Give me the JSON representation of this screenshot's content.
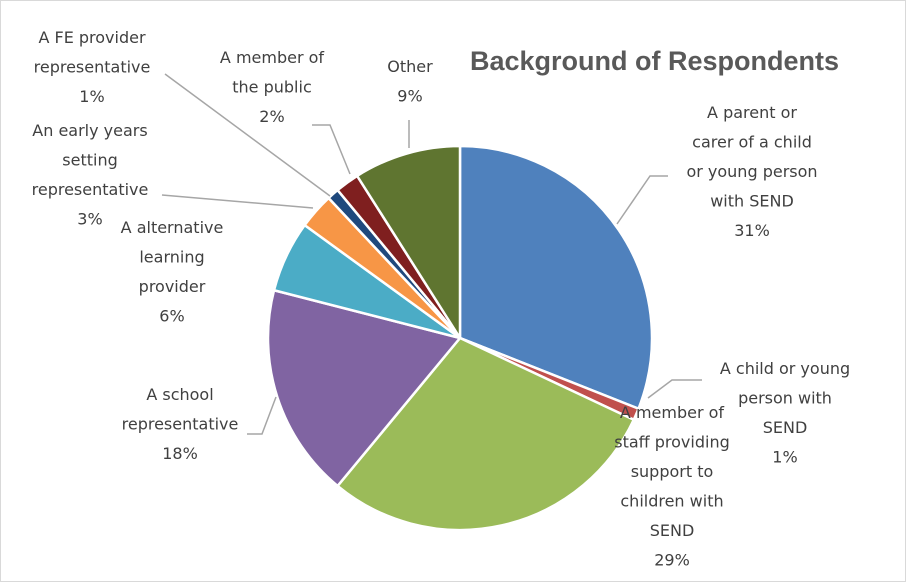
{
  "chart_data": {
    "type": "pie",
    "title": "Background of Respondents",
    "slices": [
      {
        "name": "A parent or carer of a child or young person with SEND",
        "value": 31,
        "pct": "31%",
        "color": "#4f81bd",
        "label_lines": [
          "A parent or",
          "carer of a child",
          "or young person",
          "with SEND",
          "31%"
        ]
      },
      {
        "name": "A child or young person with SEND",
        "value": 1,
        "pct": "1%",
        "color": "#c0504d",
        "label_lines": [
          "A child or young",
          "person with",
          "SEND",
          "1%"
        ]
      },
      {
        "name": "A member of staff providing support to children with SEND",
        "value": 29,
        "pct": "29%",
        "color": "#9bbb59",
        "label_lines": [
          "A member of",
          "staff providing",
          "support to",
          "children with",
          "SEND",
          "29%"
        ]
      },
      {
        "name": "A school representative",
        "value": 18,
        "pct": "18%",
        "color": "#8064a2",
        "label_lines": [
          "A school",
          "representative",
          "18%"
        ]
      },
      {
        "name": "A alternative learning provider",
        "value": 6,
        "pct": "6%",
        "color": "#4bacc6",
        "label_lines": [
          "A alternative",
          "learning",
          "provider",
          "6%"
        ]
      },
      {
        "name": "An early years setting representative",
        "value": 3,
        "pct": "3%",
        "color": "#f79646",
        "label_lines": [
          "An early years",
          "setting",
          "representative",
          "3%"
        ]
      },
      {
        "name": "A FE provider representative",
        "value": 1,
        "pct": "1%",
        "color": "#1f497d",
        "label_lines": [
          "A FE provider",
          "representative",
          "1%"
        ]
      },
      {
        "name": "A member of the public",
        "value": 2,
        "pct": "2%",
        "color": "#7f1f1f",
        "label_lines": [
          "A member of",
          "the public",
          "2%"
        ]
      },
      {
        "name": "Other",
        "value": 9,
        "pct": "9%",
        "color": "#5f7530",
        "label_lines": [
          "Other",
          "9%"
        ]
      }
    ]
  }
}
